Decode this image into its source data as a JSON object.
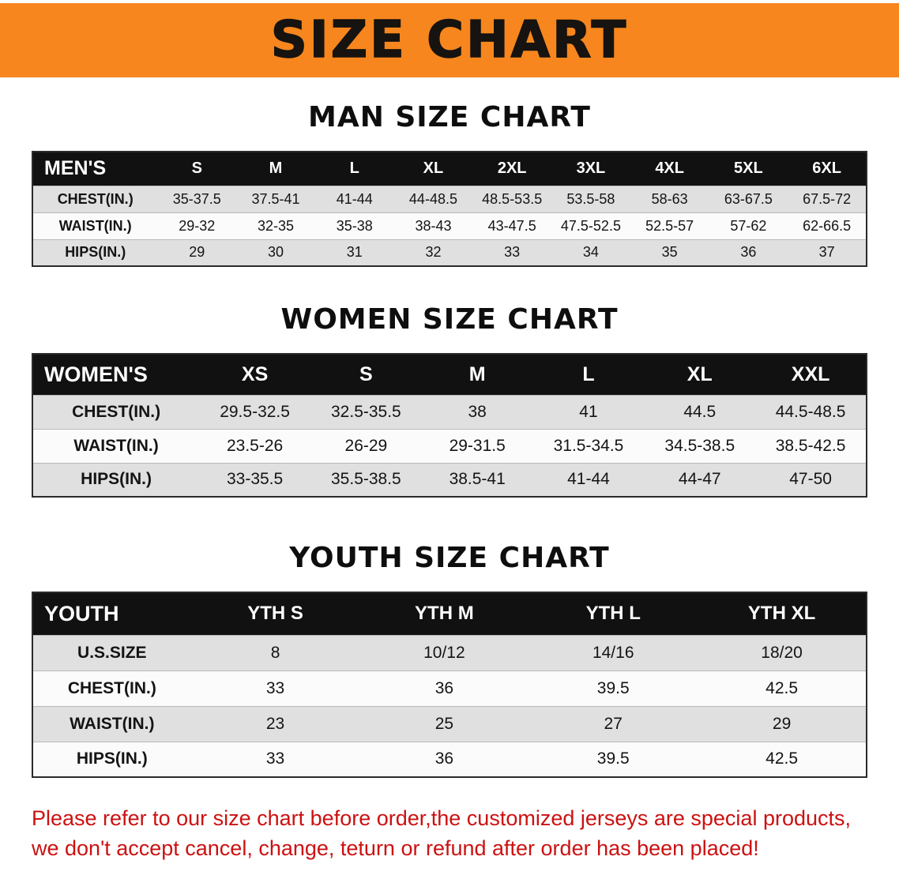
{
  "banner": {
    "title": "SIZE CHART",
    "bg_color": "#f6861d",
    "text_color": "#161310"
  },
  "sections": [
    {
      "name": "men",
      "heading": "MAN SIZE CHART",
      "table": {
        "header": [
          "MEN'S",
          "S",
          "M",
          "L",
          "XL",
          "2XL",
          "3XL",
          "4XL",
          "5XL",
          "6XL"
        ],
        "rows": [
          [
            "CHEST(IN.)",
            "35-37.5",
            "37.5-41",
            "41-44",
            "44-48.5",
            "48.5-53.5",
            "53.5-58",
            "58-63",
            "63-67.5",
            "67.5-72"
          ],
          [
            "WAIST(IN.)",
            "29-32",
            "32-35",
            "35-38",
            "38-43",
            "43-47.5",
            "47.5-52.5",
            "52.5-57",
            "57-62",
            "62-66.5"
          ],
          [
            "HIPS(IN.)",
            "29",
            "30",
            "31",
            "32",
            "33",
            "34",
            "35",
            "36",
            "37"
          ]
        ]
      }
    },
    {
      "name": "women",
      "heading": "WOMEN SIZE CHART",
      "table": {
        "header": [
          "WOMEN'S",
          "XS",
          "S",
          "M",
          "L",
          "XL",
          "XXL"
        ],
        "rows": [
          [
            "CHEST(IN.)",
            "29.5-32.5",
            "32.5-35.5",
            "38",
            "41",
            "44.5",
            "44.5-48.5"
          ],
          [
            "WAIST(IN.)",
            "23.5-26",
            "26-29",
            "29-31.5",
            "31.5-34.5",
            "34.5-38.5",
            "38.5-42.5"
          ],
          [
            "HIPS(IN.)",
            "33-35.5",
            "35.5-38.5",
            "38.5-41",
            "41-44",
            "44-47",
            "47-50"
          ]
        ]
      }
    },
    {
      "name": "youth",
      "heading": "YOUTH SIZE CHART",
      "table": {
        "header": [
          "YOUTH",
          "YTH S",
          "YTH M",
          "YTH L",
          "YTH XL"
        ],
        "rows": [
          [
            "U.S.SIZE",
            "8",
            "10/12",
            "14/16",
            "18/20"
          ],
          [
            "CHEST(IN.)",
            "33",
            "36",
            "39.5",
            "42.5"
          ],
          [
            "WAIST(IN.)",
            "23",
            "25",
            "27",
            "29"
          ],
          [
            "HIPS(IN.)",
            "33",
            "36",
            "39.5",
            "42.5"
          ]
        ]
      }
    }
  ],
  "disclaimer": {
    "line1": "Please refer to our size chart before order,the customized jerseys are special products,",
    "line2": "we don't accept cancel, change, teturn or refund after order has been placed!",
    "color": "#cc1111"
  }
}
